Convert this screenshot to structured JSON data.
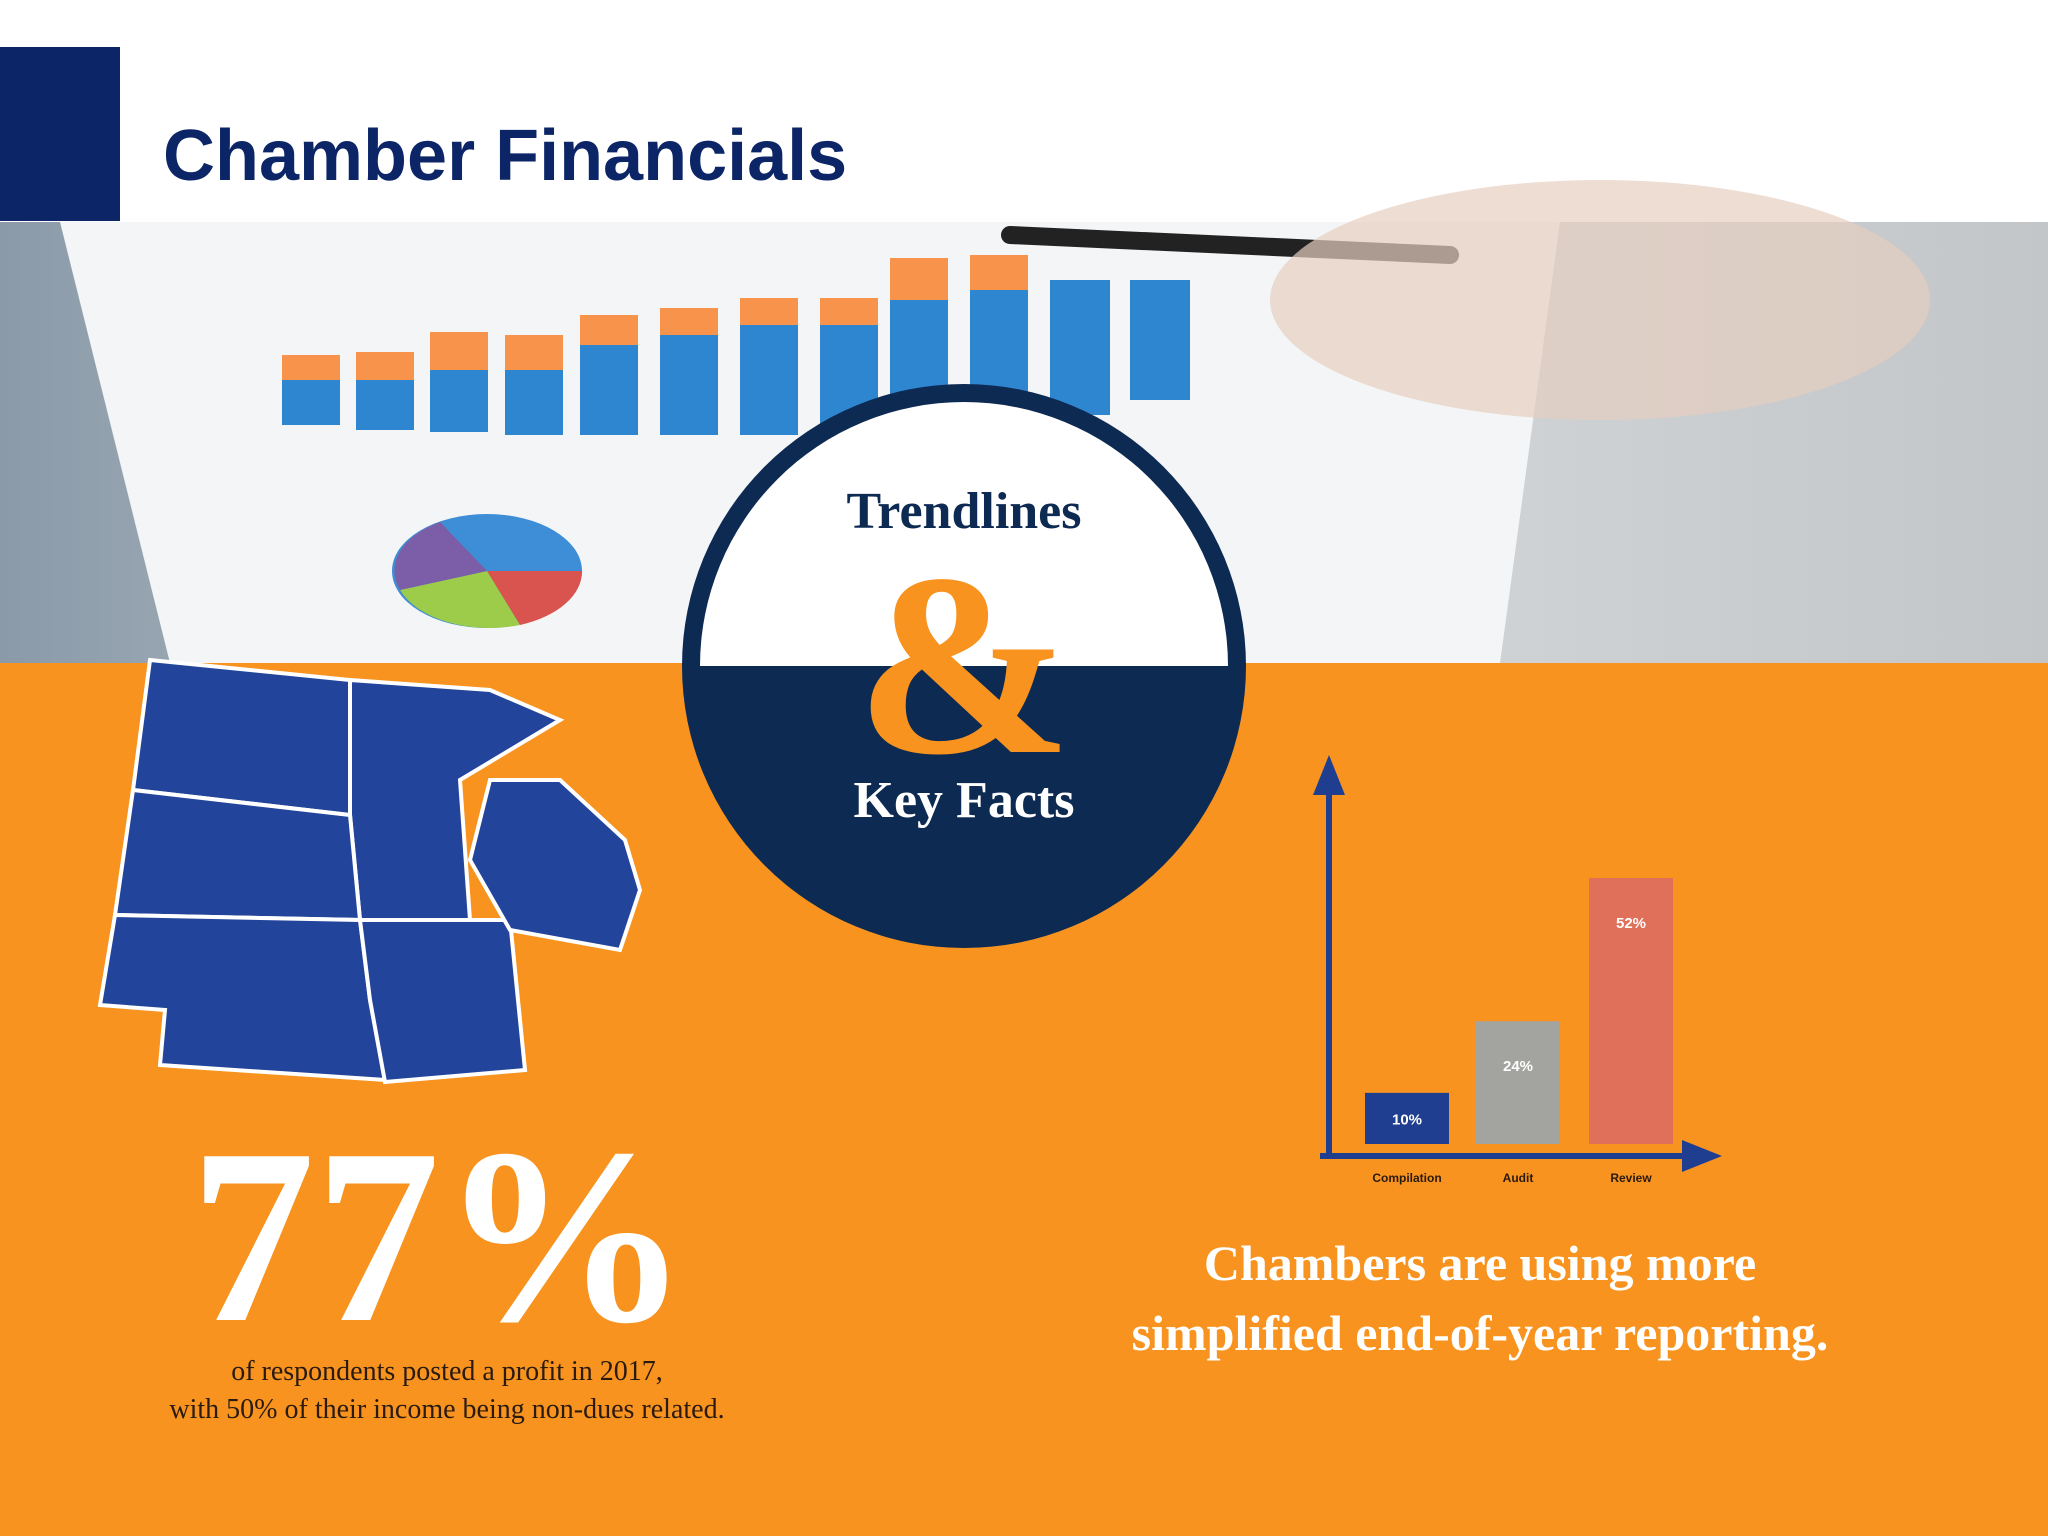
{
  "header": {
    "title": "Chamber Financials"
  },
  "badge": {
    "top": "Trendlines",
    "middle": "&",
    "bottom": "Key Facts"
  },
  "stat": {
    "value": "77%",
    "caption": [
      "of respondents posted a profit in 2017,",
      "with 50% of their income being non-dues related."
    ]
  },
  "bar_chart": {
    "categories": [
      "Compilation",
      "Audit",
      "Review"
    ],
    "values": [
      10,
      24,
      52
    ],
    "value_labels": [
      "10%",
      "24%",
      "52%"
    ],
    "colors": [
      "#1f3e8f",
      "#a3a3a0",
      "#e0705a"
    ]
  },
  "headline": [
    "Chambers are using more",
    "simplified end-of-year reporting."
  ]
}
